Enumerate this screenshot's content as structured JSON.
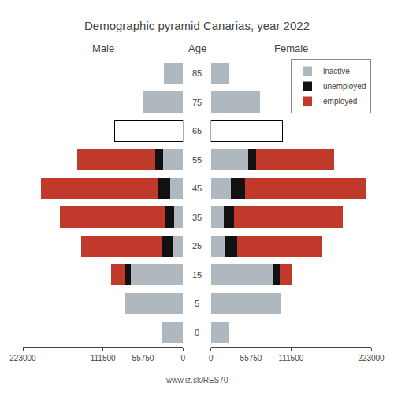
{
  "chart_data": {
    "type": "bar",
    "orientation": "horizontal",
    "stacked": true,
    "grid": false,
    "legend": "upper right",
    "title": "Demographic pyramid Canarias, year 2022",
    "ylabel": "Age",
    "annotations": [
      "www.iz.sk/RES70"
    ],
    "categories": [
      "0",
      "5",
      "15",
      "25",
      "35",
      "45",
      "55",
      "65",
      "75",
      "85"
    ],
    "panels": [
      {
        "title": "Male",
        "xlim": [
          223000,
          0
        ],
        "xticks": [
          0,
          55750,
          111500,
          223000
        ],
        "series": [
          {
            "name": "inactive",
            "color": "#b0b8bf",
            "values": [
              30000,
              80000,
              73000,
              15000,
              12000,
              18000,
              28000,
              null,
              55000,
              27000
            ]
          },
          {
            "name": "unemployed",
            "color": "#111111",
            "values": [
              0,
              0,
              9000,
              15000,
              14000,
              17000,
              11000,
              null,
              0,
              0
            ]
          },
          {
            "name": "employed",
            "color": "#c0392b",
            "values": [
              0,
              0,
              18000,
              112000,
              145000,
              163000,
              108000,
              null,
              0,
              0
            ]
          },
          {
            "color": "#ffffff",
            "values": [
              null,
              null,
              null,
              null,
              null,
              null,
              null,
              95000,
              null,
              null
            ]
          }
        ]
      },
      {
        "title": "Female",
        "xlim": [
          0,
          223000
        ],
        "xticks": [
          0,
          55750,
          111500,
          223000
        ],
        "series": [
          {
            "name": "inactive",
            "color": "#b0b8bf",
            "values": [
              26000,
              98000,
              86000,
              20000,
              18000,
              28000,
              52000,
              null,
              68000,
              25000
            ]
          },
          {
            "name": "unemployed",
            "color": "#111111",
            "values": [
              0,
              0,
              10000,
              16000,
              14000,
              20000,
              11000,
              null,
              0,
              0
            ]
          },
          {
            "name": "employed",
            "color": "#c0392b",
            "values": [
              0,
              0,
              17000,
              118000,
              152000,
              168000,
              108000,
              null,
              0,
              0
            ]
          },
          {
            "color": "#ffffff",
            "values": [
              null,
              null,
              null,
              null,
              null,
              null,
              null,
              100000,
              null,
              null
            ]
          }
        ]
      }
    ]
  }
}
